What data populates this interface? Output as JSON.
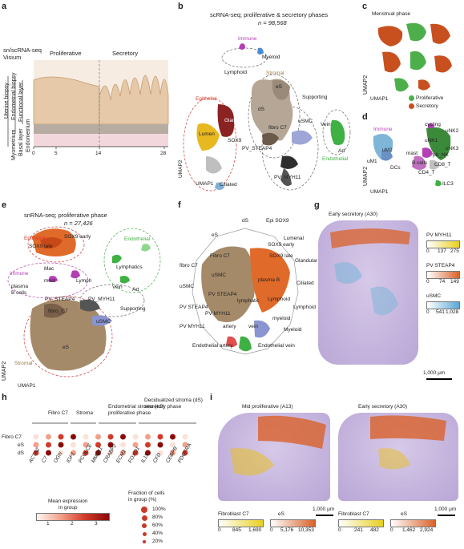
{
  "panel_letters": [
    "a",
    "b",
    "c",
    "d",
    "e",
    "f",
    "g",
    "h",
    "i"
  ],
  "panel_a": {
    "header": "sn/scRNA-seq\nVisium",
    "phases": [
      "Proliferative",
      "Secretory"
    ],
    "layers": [
      "Uterine biopsy",
      "Endometrial biopsy",
      "Functional layer",
      "Endometrium",
      "Basal layer",
      "Myometrium"
    ],
    "x_ticks": [
      "0",
      "5",
      "14",
      "28"
    ]
  },
  "panel_b": {
    "title": "scRNA-seq; proliferative & secretory phases",
    "n": "n = 98,568",
    "labels": [
      "Immune",
      "Myeloid",
      "Lymphoid",
      "Stromal",
      "eS",
      "dS",
      "Supporting",
      "Epithelial",
      "Glandular",
      "Lumen",
      "SOX9",
      "Ciliated",
      "fibro C7",
      "uSMC",
      "PV_STEAP4",
      "PV_MYH11",
      "Vein",
      "Art",
      "Endothelial"
    ],
    "xaxis": "UMAP1",
    "yaxis": "UMAP2"
  },
  "panel_c": {
    "title": "Menstrual phase",
    "xaxis": "UMAP1",
    "yaxis": "UMAP2",
    "legend": [
      "Proliferative",
      "Secretory"
    ],
    "colors": [
      "#4daf4a",
      "#c8501e"
    ]
  },
  "panel_d": {
    "labels": [
      "Immune",
      "cycling",
      "uNK2",
      "uNK1",
      "uNK3",
      "uM2",
      "mast",
      "pb_NK",
      "uM1",
      "B cells",
      "CD8_T",
      "DCs",
      "CD4_T",
      "ILC3"
    ],
    "xaxis": "UMAP1",
    "yaxis": "UMAP2"
  },
  "panel_e": {
    "title": "snRNA-seq; proliferative phase",
    "n": "n = 27,426",
    "labels": [
      "Epithelial",
      "SOX9 early",
      "SOX9 late",
      "Endothelial",
      "Immune",
      "Mac",
      "Lymphatics",
      "mast",
      "Lymph",
      "plasma",
      "Vein",
      "B cells",
      "Art",
      "PV_STEAP4",
      "PV_MYH11",
      "fibro_C7",
      "Supporting",
      "uSMC",
      "eS",
      "Stromal"
    ],
    "xaxis": "UMAP1",
    "yaxis": "UMAP2"
  },
  "panel_f": {
    "labels": [
      "dS",
      "Epi SOX9",
      "eS",
      "Lumenal",
      "SOX9 early",
      "Glandular",
      "fibro C7",
      "SOX9 late",
      "Fibro C7",
      "Ciliated",
      "uSMC",
      "uSMC",
      "plasma B",
      "PV STEAP4",
      "PV STEAP4",
      "Lymphoid",
      "lymphatic",
      "Lymphoid",
      "PV MYH11",
      "myeloid",
      "PV MYH11",
      "Myeloid",
      "artery",
      "vein",
      "Endothelial artery",
      "Endothelial vein"
    ]
  },
  "panel_g": {
    "title": "Early secretory (A30)",
    "scale": "1,000 μm",
    "legends": [
      {
        "name": "PV MYH11",
        "ticks": [
          "0",
          "137",
          "275"
        ]
      },
      {
        "name": "PV STEAP4",
        "ticks": [
          "0",
          "74",
          "149"
        ]
      },
      {
        "name": "uSMC",
        "ticks": [
          "0",
          "541",
          "1,028"
        ]
      }
    ]
  },
  "panel_h": {
    "groups": [
      "Fibro C7",
      "Stroma",
      "Endometrial stroma (eS)\nproliferative phase",
      "Decidualized stroma (dS)\nsecretory phase"
    ],
    "rows": [
      "Fibro C7",
      "eS",
      "dS"
    ],
    "genes": [
      "ACTA2",
      "C7",
      "OGN",
      "IGF1",
      "PCOLCE",
      "MMP11",
      "CRABP2",
      "ECM1",
      "FOXO1",
      "IL15",
      "CFD",
      "CEBPB",
      "PDGFRA"
    ],
    "expr_title": "Mean expression\nin group",
    "expr_ticks": [
      "1",
      "2",
      "3"
    ],
    "frac_title": "Fraction of cells\nin group (%)",
    "frac_ticks": [
      "100%",
      "80%",
      "60%",
      "40%",
      "20%"
    ]
  },
  "panel_i": {
    "titles": [
      "Mid proliferative (A13)",
      "Early secretory (A30)"
    ],
    "scale": "1,000 μm",
    "legends": [
      {
        "name": "Fibroblast C7",
        "ticks": [
          "0",
          "845",
          "1,690"
        ]
      },
      {
        "name": "eS",
        "ticks": [
          "0",
          "5,176",
          "10,353"
        ]
      },
      {
        "name": "Fibroblast C7",
        "ticks": [
          "0",
          "241",
          "482"
        ]
      },
      {
        "name": "eS",
        "ticks": [
          "0",
          "1,462",
          "2,924"
        ]
      }
    ]
  }
}
